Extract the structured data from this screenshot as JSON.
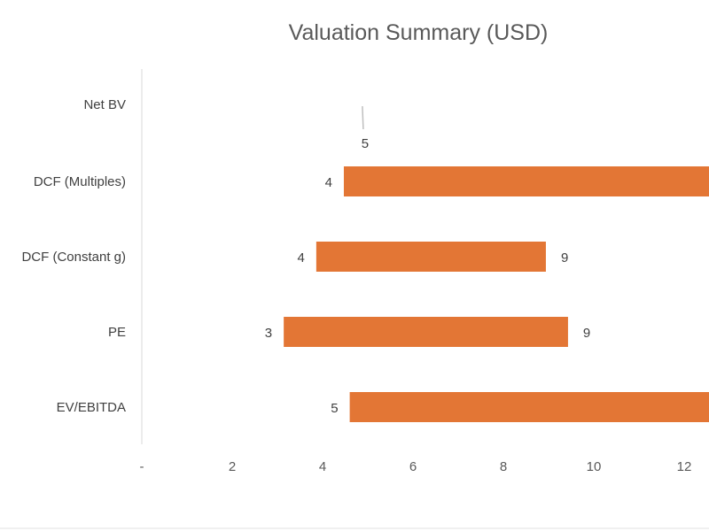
{
  "chart_data": {
    "type": "bar",
    "orientation": "horizontal",
    "subtype": "floating-range",
    "title": "Valuation Summary (USD)",
    "categories": [
      "Net BV",
      "DCF (Multiples)",
      "DCF (Constant g)",
      "PE",
      "EV/EBITDA"
    ],
    "low": [
      4.9,
      4.47,
      3.86,
      3.14,
      4.6
    ],
    "high": [
      4.9,
      13,
      8.94,
      9.43,
      13
    ],
    "low_labels": [
      "5",
      "4",
      "4",
      "3",
      "5"
    ],
    "high_labels": [
      null,
      null,
      "9",
      "9",
      null
    ],
    "xticks": [
      "-",
      "2",
      "4",
      "6",
      "8",
      "10",
      "12"
    ],
    "xtick_values": [
      0,
      2,
      4,
      6,
      8,
      10,
      12
    ],
    "xlim": [
      0,
      12.6
    ],
    "grid": false,
    "bar_color": "#E37635",
    "legend": "none"
  }
}
